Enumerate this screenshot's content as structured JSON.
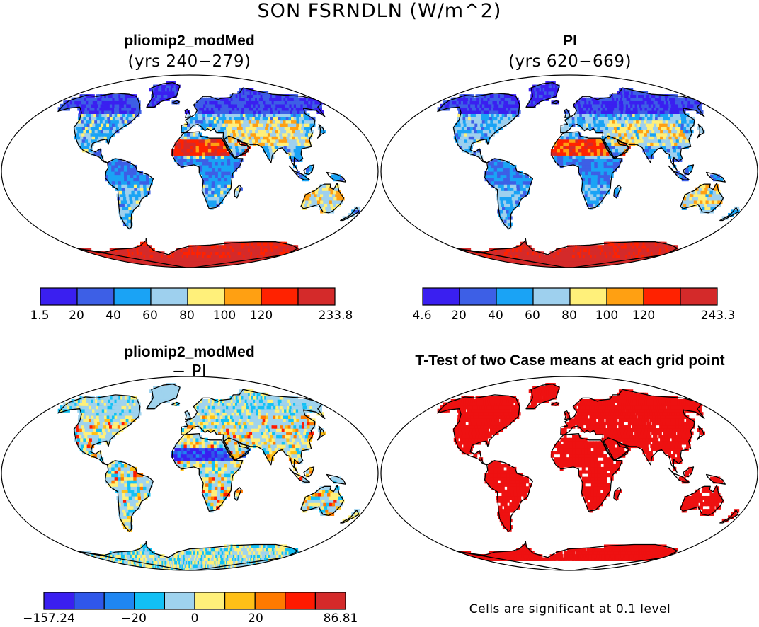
{
  "figure": {
    "title": "SON FSRNDLN (W/m^2)"
  },
  "panels": [
    {
      "id": "pliomip2",
      "title": "pliomip2_modMed",
      "subtitle": "(yrs 240−279)",
      "colorbar": {
        "colors": [
          "#3a1ff0",
          "#3d5fe6",
          "#1aa3f5",
          "#9ed0ee",
          "#fff07a",
          "#ffa012",
          "#ff2200",
          "#d42a2a"
        ],
        "tick_labels": [
          "1.5",
          "20",
          "40",
          "60",
          "80",
          "100",
          "120",
          "233.8"
        ]
      }
    },
    {
      "id": "pi",
      "title": "PI",
      "subtitle": "(yrs 620−669)",
      "colorbar": {
        "colors": [
          "#3a1ff0",
          "#3d5fe6",
          "#1aa3f5",
          "#9ed0ee",
          "#fff07a",
          "#ffa012",
          "#ff2200",
          "#d42a2a"
        ],
        "tick_labels": [
          "4.6",
          "20",
          "40",
          "60",
          "80",
          "100",
          "120",
          "243.3"
        ]
      }
    },
    {
      "id": "diff",
      "title": "pliomip2_modMed",
      "subtitle": "− PI",
      "colorbar": {
        "colors": [
          "#3a1ff0",
          "#2f57ea",
          "#1f86f2",
          "#12c0f5",
          "#9fd3ee",
          "#fff07a",
          "#ffc017",
          "#ff7a00",
          "#ff1a00",
          "#d42a2a"
        ],
        "tick_labels": [
          "−157.24",
          "−20",
          "0",
          "20",
          "86.81"
        ]
      }
    },
    {
      "id": "ttest",
      "title": "T-Test of two Case means at each grid point",
      "footnote": "Cells are significant at 0.1 level",
      "fill_color": "#ee1111"
    }
  ]
}
